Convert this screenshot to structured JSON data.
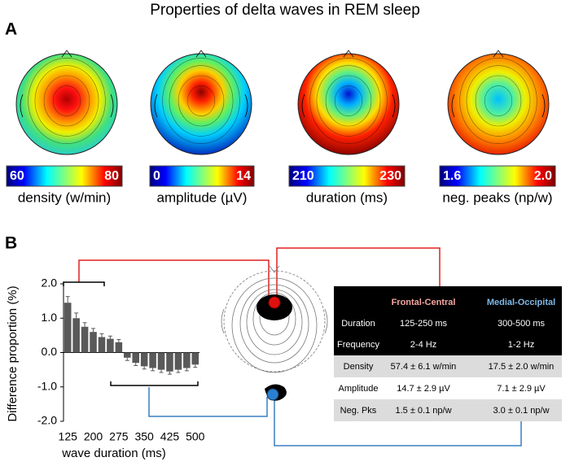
{
  "title": "Properties of delta waves in REM sleep",
  "panels": [
    "A",
    "B"
  ],
  "topomaps": [
    {
      "range": [
        60,
        80
      ],
      "label": "density (w/min)"
    },
    {
      "range": [
        0,
        14
      ],
      "label": "amplitude (µV)"
    },
    {
      "range": [
        210,
        230
      ],
      "label": "duration (ms)"
    },
    {
      "range": [
        1.6,
        {
          "value": 2,
          "label": "2.0"
        }
      ],
      "label": "neg. peaks (np/w)"
    }
  ],
  "chart_data": {
    "type": "bar",
    "ylabel": "Difference proportion (%)",
    "xlabel": "wave duration (ms)",
    "x": [
      125,
      150,
      175,
      200,
      225,
      250,
      275,
      300,
      325,
      350,
      375,
      400,
      425,
      450,
      475,
      500
    ],
    "values": [
      1.45,
      1.0,
      0.75,
      0.6,
      0.45,
      0.4,
      0.3,
      -0.15,
      -0.3,
      -0.4,
      -0.45,
      -0.5,
      -0.55,
      -0.5,
      -0.45,
      -0.35
    ],
    "errors": [
      0.18,
      0.15,
      0.12,
      0.1,
      0.1,
      0.08,
      0.08,
      0.08,
      0.08,
      0.08,
      0.08,
      0.08,
      0.08,
      0.08,
      0.08,
      0.08
    ],
    "color": "#595959",
    "xlim": [
      112.5,
      512.5
    ],
    "xticks": [
      125,
      200,
      275,
      350,
      425,
      500
    ],
    "ylim": [
      -2,
      2
    ],
    "yticks": [
      {
        "value": 2,
        "label": "2.0"
      },
      {
        "value": 1,
        "label": "1.0"
      },
      {
        "value": 0,
        "label": "0.0"
      },
      {
        "value": -1,
        "label": "-1.0"
      },
      {
        "value": -2,
        "label": "-2.0"
      }
    ]
  },
  "table": {
    "columns": [
      "Frontal-Central",
      "Medial-Occipital"
    ],
    "rows": [
      {
        "label": "Duration",
        "cells": [
          "125-250 ms",
          "300-500 ms"
        ]
      },
      {
        "label": "Frequency",
        "cells": [
          "2-4 Hz",
          "1-2 Hz"
        ]
      },
      {
        "label": "Density",
        "cells": [
          "57.4 ± 6.1 w/min",
          "17.5 ± 2.0 w/min"
        ]
      },
      {
        "label": "Amplitude",
        "cells": [
          "14.7 ± 2.9 µV",
          "7.1 ± 2.9 µV"
        ]
      },
      {
        "label": "Neg. Pks",
        "cells": [
          "1.5 ± 0.1 np/w",
          "3.0 ± 0.1 np/w"
        ]
      }
    ]
  }
}
